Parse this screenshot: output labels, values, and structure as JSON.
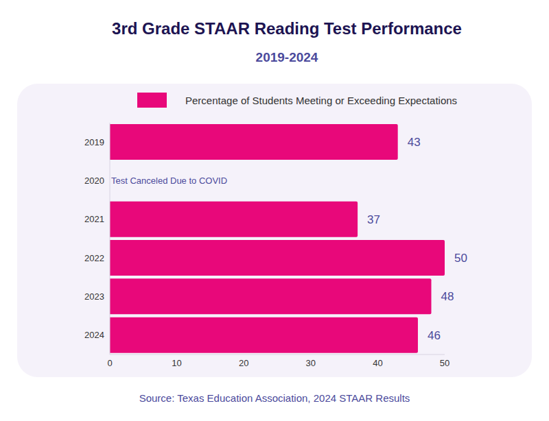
{
  "chart_data": {
    "type": "bar",
    "orientation": "horizontal",
    "title": "3rd Grade STAAR Reading Test Performance",
    "subtitle": "2019-2024",
    "source": "Source: Texas Education Association, 2024 STAAR Results",
    "categories": [
      "2019",
      "2020",
      "2021",
      "2022",
      "2023",
      "2024"
    ],
    "series": [
      {
        "name": "Percentage of Students Meeting or Exceeding Expectations",
        "color": "#e8087a",
        "values": [
          43,
          null,
          37,
          50,
          48,
          46
        ]
      }
    ],
    "annotations": [
      {
        "category": "2020",
        "text": "Test Canceled Due to COVID"
      }
    ],
    "xlim": [
      0,
      50
    ],
    "xticks": [
      0,
      10,
      20,
      30,
      40,
      50
    ],
    "data_labels": true,
    "grid": false,
    "legend": "top"
  }
}
